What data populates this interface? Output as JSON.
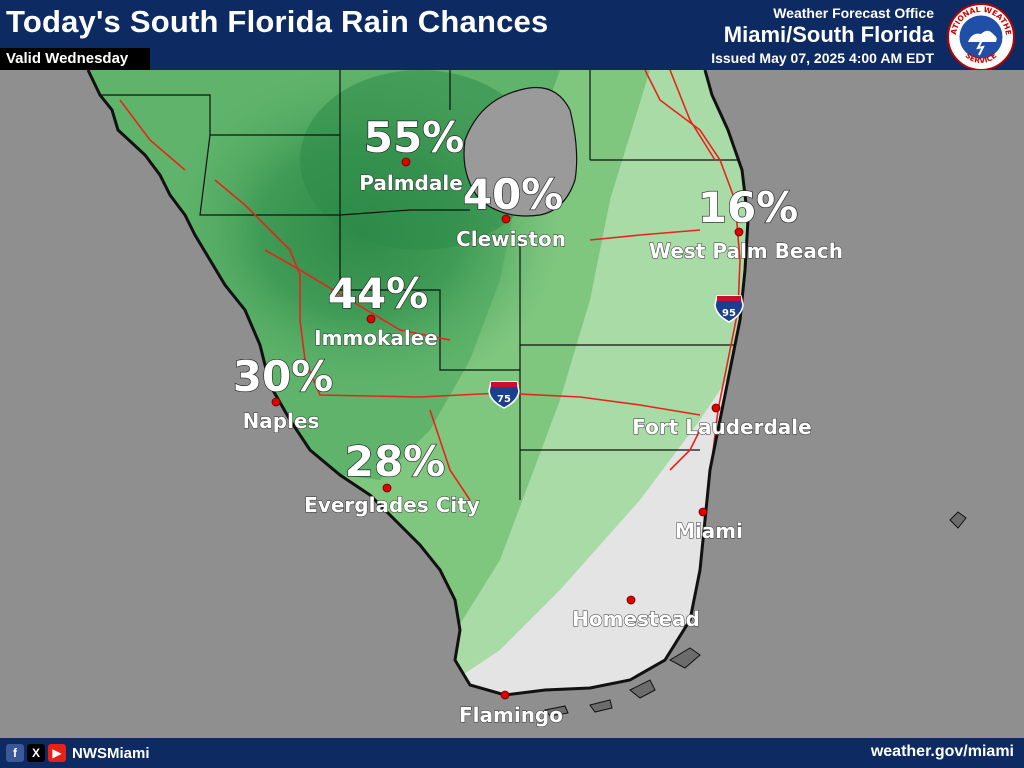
{
  "header": {
    "title": "Today's South Florida Rain Chances",
    "subtitle": "Valid Wednesday",
    "office_label": "Weather Forecast Office",
    "office_name": "Miami/South Florida",
    "issued": "Issued May 07, 2025 4:00 AM EDT"
  },
  "logo": {
    "text_top": "NATIONAL WEATHER",
    "text_bottom": "SERVICE"
  },
  "map": {
    "shields": [
      {
        "number": "95",
        "banner": "INTERSTATE"
      },
      {
        "number": "75",
        "banner": "INTERSTATE"
      }
    ],
    "cities": [
      {
        "name": "Palmdale",
        "pct": "55%"
      },
      {
        "name": "Clewiston",
        "pct": "40%"
      },
      {
        "name": "West Palm Beach",
        "pct": "16%"
      },
      {
        "name": "Immokalee",
        "pct": "44%"
      },
      {
        "name": "Naples",
        "pct": "30%"
      },
      {
        "name": "Everglades City",
        "pct": "28%"
      },
      {
        "name": "Fort Lauderdale",
        "pct": ""
      },
      {
        "name": "Miami",
        "pct": ""
      },
      {
        "name": "Homestead",
        "pct": ""
      },
      {
        "name": "Flamingo",
        "pct": ""
      }
    ],
    "colors": {
      "water": "#8f8f8f",
      "lake": "#9a9a9a",
      "land_low": "#e4e4e4",
      "green_light": "#a9dba6",
      "green_mid": "#6fbf73",
      "green_dark": "#3f9b55",
      "roads": "#e8231e",
      "city_dot": "#e00000"
    }
  },
  "footer": {
    "icons": [
      "facebook-icon",
      "x-icon",
      "youtube-icon"
    ],
    "handle": "NWSMiami",
    "website": "weather.gov/miami"
  }
}
